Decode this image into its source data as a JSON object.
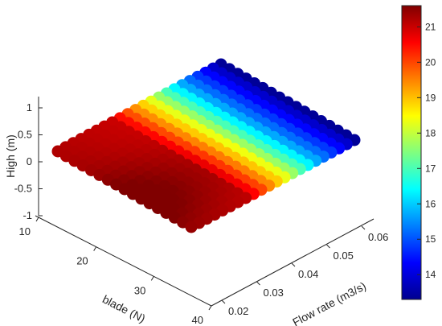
{
  "chart_data": {
    "type": "scatter3d",
    "title": "",
    "xlabel": "blade (N)",
    "ylabel": "Flow rate (m3/s)",
    "zlabel": "High (m)",
    "x_ticks": [
      "10",
      "20",
      "30",
      "40"
    ],
    "y_ticks": [
      "0.02",
      "0.03",
      "0.04",
      "0.05",
      "0.06"
    ],
    "z_ticks": [
      "1",
      "0.5",
      "0",
      "-0.5",
      "-1"
    ],
    "xlim": [
      10,
      40
    ],
    "ylim": [
      0.02,
      0.065
    ],
    "zlim": [
      -1,
      1.2
    ],
    "z_plane": 0,
    "colormap": "jet",
    "colorbar": {
      "range": [
        13.3,
        21.6
      ],
      "ticks": [
        "21",
        "20",
        "19",
        "18",
        "17",
        "16",
        "15",
        "14"
      ]
    },
    "grid": {
      "blade_points": 17,
      "flow_points": 22
    },
    "color_model": {
      "description_free": true,
      "flow_breakpoints": [
        0.02,
        0.035,
        0.045,
        0.055,
        0.065
      ],
      "value_at_breakpoints": [
        21.2,
        21.0,
        18.5,
        15.5,
        13.5
      ],
      "blade_peak": 30,
      "blade_bonus": 0.6
    }
  }
}
